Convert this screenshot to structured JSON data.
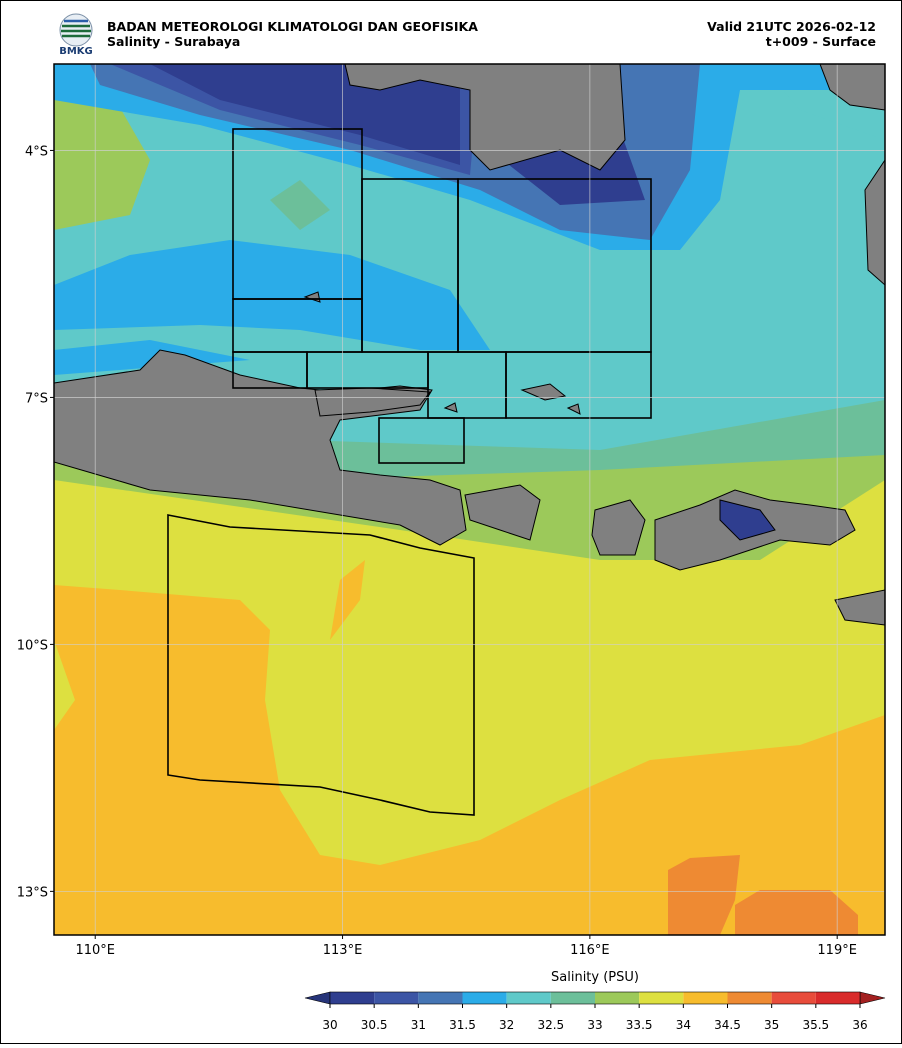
{
  "header": {
    "title": "BADAN METEOROLOGI KLIMATOLOGI DAN GEOFISIKA",
    "subtitle": "Salinity - Surabaya",
    "valid": "Valid 21UTC 2026-02-12",
    "step": "t+009 - Surface",
    "logo_text": "BMKG"
  },
  "map": {
    "xlim": [
      109.5,
      119.58
    ],
    "ylim": [
      -2.95,
      -13.53
    ],
    "xticks": [
      {
        "value": 110,
        "label": "110°E"
      },
      {
        "value": 113,
        "label": "113°E"
      },
      {
        "value": 116,
        "label": "116°E"
      },
      {
        "value": 119,
        "label": "119°E"
      }
    ],
    "yticks": [
      {
        "value": -4,
        "label": "4°S"
      },
      {
        "value": -7,
        "label": "7°S"
      },
      {
        "value": -10,
        "label": "10°S"
      },
      {
        "value": -13,
        "label": "13°S"
      }
    ],
    "grid": true
  },
  "colorbar": {
    "label": "Salinity (PSU)",
    "ticks": [
      30,
      30.5,
      31,
      31.5,
      32,
      32.5,
      33,
      33.5,
      34,
      34.5,
      35,
      35.5,
      36
    ],
    "colors": [
      "#2f3e8f",
      "#3c55a5",
      "#4575b4",
      "#2bace8",
      "#5fc9c9",
      "#6cbf9a",
      "#9cc95a",
      "#dde040",
      "#f7bc2d",
      "#ee8a33",
      "#e84c3b",
      "#d92b2b"
    ],
    "under_color": "#263479",
    "over_color": "#a32020"
  }
}
